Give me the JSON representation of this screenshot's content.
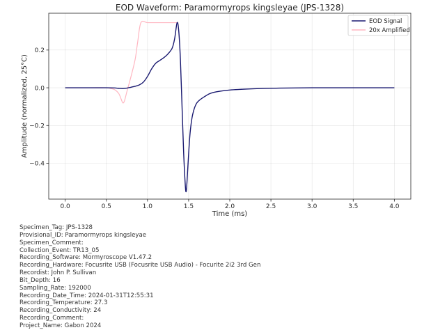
{
  "chart_data": {
    "type": "line",
    "title": "EOD Waveform: Paramormyrops kingsleyae (JPS-1328)",
    "xlabel": "Time (ms)",
    "ylabel": "Amplitude (normalized, 25°C)",
    "xlim": [
      -0.2,
      4.2
    ],
    "ylim": [
      -0.59,
      0.395
    ],
    "x_ticks": [
      0.0,
      0.5,
      1.0,
      1.5,
      2.0,
      2.5,
      3.0,
      3.5,
      4.0
    ],
    "x_tick_labels": [
      "0.0",
      "0.5",
      "1.0",
      "1.5",
      "2.0",
      "2.5",
      "3.0",
      "3.5",
      "4.0"
    ],
    "y_ticks": [
      0.2,
      0.0,
      -0.2,
      -0.4
    ],
    "y_tick_labels": [
      "0.2",
      "0.0",
      "−0.2",
      "−0.4"
    ],
    "grid": true,
    "legend_position": "top-right",
    "series": [
      {
        "name": "EOD Signal",
        "color": "#191970",
        "x": [
          0.0,
          0.3,
          0.5,
          0.6,
          0.65,
          0.7,
          0.75,
          0.8,
          0.85,
          0.9,
          0.95,
          1.0,
          1.05,
          1.1,
          1.15,
          1.2,
          1.25,
          1.3,
          1.33,
          1.36,
          1.38,
          1.4,
          1.42,
          1.44,
          1.46,
          1.47,
          1.48,
          1.5,
          1.52,
          1.55,
          1.6,
          1.7,
          1.8,
          2.0,
          2.3,
          2.6,
          3.0,
          3.5,
          4.0
        ],
        "y": [
          0.0,
          0.0,
          0.0,
          -0.001,
          -0.003,
          -0.004,
          -0.002,
          0.003,
          0.008,
          0.015,
          0.03,
          0.06,
          0.1,
          0.13,
          0.145,
          0.16,
          0.18,
          0.21,
          0.26,
          0.345,
          0.3,
          0.15,
          -0.1,
          -0.35,
          -0.52,
          -0.55,
          -0.5,
          -0.35,
          -0.23,
          -0.14,
          -0.08,
          -0.045,
          -0.025,
          -0.012,
          -0.005,
          -0.002,
          0.0,
          0.0,
          0.0
        ]
      },
      {
        "name": "20x Amplified",
        "color": "#ffb6c1",
        "x": [
          0.0,
          0.3,
          0.5,
          0.55,
          0.6,
          0.65,
          0.68,
          0.7,
          0.72,
          0.75,
          0.8,
          0.85,
          0.88,
          0.92,
          1.0,
          1.1,
          1.2,
          1.3,
          1.37
        ],
        "y": [
          0.0,
          0.0,
          0.0,
          -0.004,
          -0.01,
          -0.03,
          -0.06,
          -0.08,
          -0.07,
          -0.02,
          0.06,
          0.15,
          0.24,
          0.345,
          0.345,
          0.345,
          0.345,
          0.345,
          0.345
        ]
      }
    ]
  },
  "metadata": [
    "Specimen_Tag: JPS-1328",
    "Provisional_ID: Paramormyrops kingsleyae",
    "Specimen_Comment:",
    "Collection_Event: TR13_05",
    "Recording_Software: Mormyroscope V1.47.2",
    "Recording_Hardware: Focusrite USB (Focusrite USB Audio) - Focurite 2i2 3rd Gen",
    "Recordist: John P. Sullivan",
    "Bit_Depth: 16",
    "Sampling_Rate: 192000",
    "Recording_Date_Time: 2024-01-31T12:55:31",
    "Recording_Temperature: 27.3",
    "Recording_Conductivity: 24",
    "Recording_Comment:",
    "Project_Name: Gabon 2024"
  ]
}
